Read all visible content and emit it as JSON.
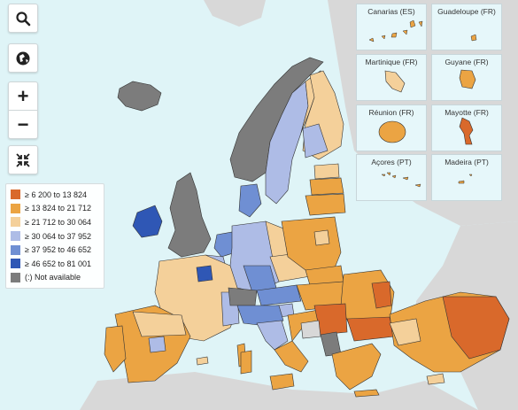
{
  "controls": {
    "search": "search-icon",
    "globe": "globe-icon",
    "zoom_in": "+",
    "zoom_out": "−",
    "fullscreen": "collapse-icon"
  },
  "legend": {
    "items": [
      {
        "label": "≥ 6 200 to 13 824",
        "color": "#d9692b"
      },
      {
        "label": "≥ 13 824 to 21 712",
        "color": "#eba443"
      },
      {
        "label": "≥ 21 712 to 30 064",
        "color": "#f4d09a"
      },
      {
        "label": "≥ 30 064 to 37 952",
        "color": "#aebce6"
      },
      {
        "label": "≥ 37 952 to 46 652",
        "color": "#6f8fd3"
      },
      {
        "label": "≥ 46 652 to 81 001",
        "color": "#2f57b5"
      },
      {
        "label": "(:) Not available",
        "color": "#7c7c7c"
      }
    ]
  },
  "insets": [
    {
      "name": "Canarias (ES)"
    },
    {
      "name": "Guadeloupe (FR)"
    },
    {
      "name": "Martinique (FR)"
    },
    {
      "name": "Guyane (FR)"
    },
    {
      "name": "Réunion (FR)"
    },
    {
      "name": "Mayotte (FR)"
    },
    {
      "name": "Açores (PT)"
    },
    {
      "name": "Madeira (PT)"
    }
  ]
}
